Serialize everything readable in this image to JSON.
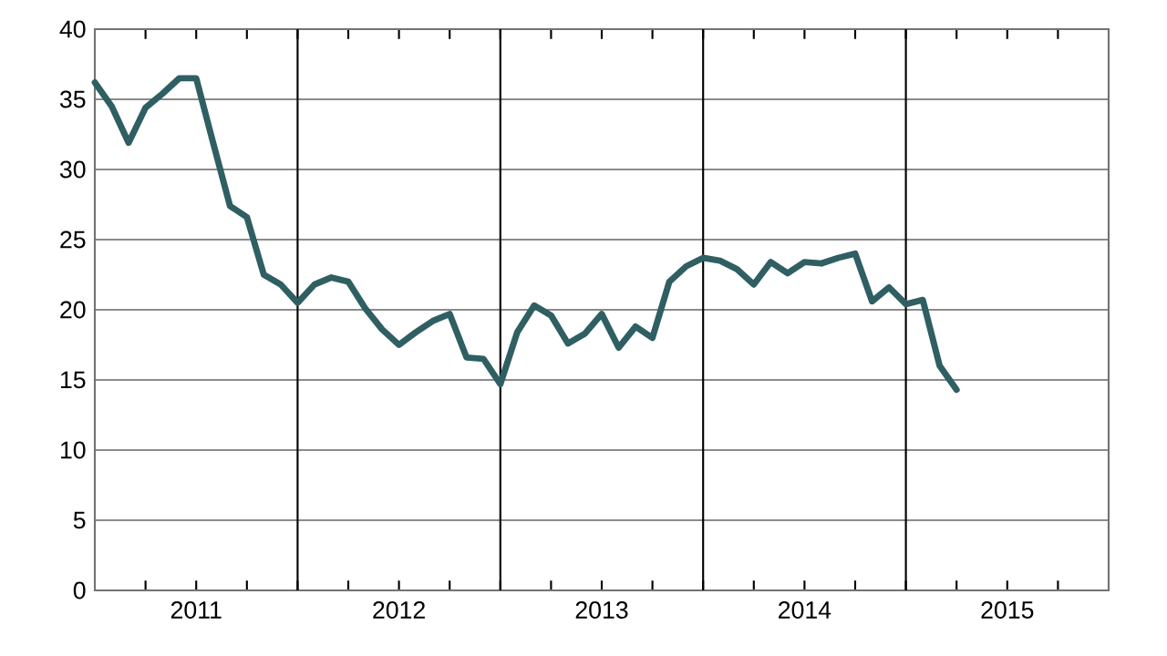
{
  "chart_data": {
    "type": "line",
    "x": [
      "2011-01",
      "2011-02",
      "2011-03",
      "2011-04",
      "2011-05",
      "2011-06",
      "2011-07",
      "2011-08",
      "2011-09",
      "2011-10",
      "2011-11",
      "2011-12",
      "2012-01",
      "2012-02",
      "2012-03",
      "2012-04",
      "2012-05",
      "2012-06",
      "2012-07",
      "2012-08",
      "2012-09",
      "2012-10",
      "2012-11",
      "2012-12",
      "2013-01",
      "2013-02",
      "2013-03",
      "2013-04",
      "2013-05",
      "2013-06",
      "2013-07",
      "2013-08",
      "2013-09",
      "2013-10",
      "2013-11",
      "2013-12",
      "2014-01",
      "2014-02",
      "2014-03",
      "2014-04",
      "2014-05",
      "2014-06",
      "2014-07",
      "2014-08",
      "2014-09",
      "2014-10",
      "2014-11",
      "2014-12",
      "2015-01",
      "2015-02",
      "2015-03",
      "2015-04"
    ],
    "series": [
      {
        "color": "#2f5f62",
        "values": [
          36.2,
          34.5,
          31.9,
          34.4,
          35.4,
          36.5,
          36.5,
          31.9,
          27.4,
          26.6,
          22.5,
          21.8,
          20.5,
          21.8,
          22.3,
          22.0,
          20.1,
          18.6,
          17.5,
          18.4,
          19.2,
          19.7,
          16.6,
          16.5,
          14.7,
          18.4,
          20.3,
          19.6,
          17.6,
          18.3,
          19.7,
          17.3,
          18.8,
          18.0,
          22.0,
          23.1,
          23.7,
          23.5,
          22.9,
          21.8,
          23.4,
          22.6,
          23.4,
          23.3,
          23.7,
          24.0,
          20.6,
          21.6,
          20.4,
          20.7,
          16.0,
          14.3
        ]
      }
    ],
    "xlim": [
      "2011-01-01",
      "2016-01-01"
    ],
    "xticks": [
      {
        "value": "2011-04-01",
        "label": null
      },
      {
        "value": "2011-07-01",
        "label": "2011"
      },
      {
        "value": "2011-10-01",
        "label": null
      },
      {
        "value": "2012-01-01",
        "label": null
      },
      {
        "value": "2012-04-01",
        "label": null
      },
      {
        "value": "2012-07-01",
        "label": "2012"
      },
      {
        "value": "2012-10-01",
        "label": null
      },
      {
        "value": "2013-01-01",
        "label": null
      },
      {
        "value": "2013-04-01",
        "label": null
      },
      {
        "value": "2013-07-01",
        "label": "2013"
      },
      {
        "value": "2013-10-01",
        "label": null
      },
      {
        "value": "2014-01-01",
        "label": null
      },
      {
        "value": "2014-04-01",
        "label": null
      },
      {
        "value": "2014-07-01",
        "label": "2014"
      },
      {
        "value": "2014-10-01",
        "label": null
      },
      {
        "value": "2015-01-01",
        "label": null
      },
      {
        "value": "2015-04-01",
        "label": null
      },
      {
        "value": "2015-07-01",
        "label": "2015"
      },
      {
        "value": "2015-10-01",
        "label": null
      }
    ],
    "ylim": [
      0,
      40
    ],
    "yticks": [
      0,
      5,
      10,
      15,
      20,
      25,
      30,
      35,
      40
    ],
    "grid": "y",
    "ref_lines": [
      {
        "axis": "x",
        "value": "2012-01-01",
        "color": "#000000"
      },
      {
        "axis": "x",
        "value": "2013-01-01",
        "color": "#000000"
      },
      {
        "axis": "x",
        "value": "2014-01-01",
        "color": "#000000"
      },
      {
        "axis": "x",
        "value": "2015-01-01",
        "color": "#000000"
      }
    ],
    "marker": "none",
    "line_style": "solid"
  }
}
